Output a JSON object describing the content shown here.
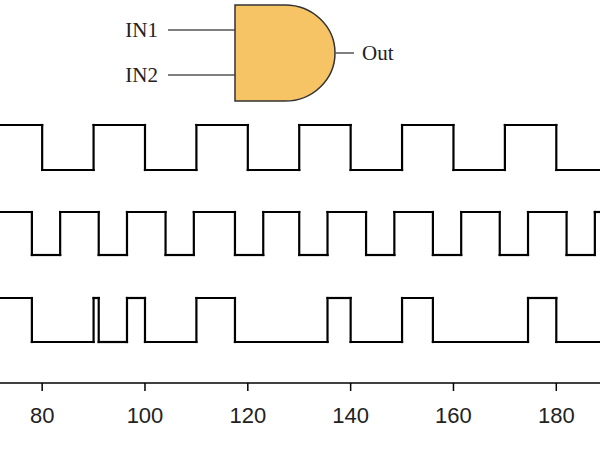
{
  "chart_data": {
    "type": "step",
    "tick_labels": "x",
    "xlim": [
      71.8,
      188.5
    ],
    "xticks": [
      80,
      100,
      120,
      140,
      160,
      180
    ],
    "ylim": [
      0,
      1
    ],
    "series": [
      {
        "name": "IN1",
        "x": [
          71.8,
          80,
          90,
          100,
          110,
          120,
          130,
          140,
          150,
          160,
          170,
          180
        ],
        "values": [
          1,
          0,
          1,
          0,
          1,
          0,
          1,
          0,
          1,
          0,
          1,
          0
        ]
      },
      {
        "name": "IN2",
        "x": [
          71.8,
          78,
          83.5,
          91,
          96.5,
          104,
          109.5,
          117.5,
          123,
          130,
          135.5,
          143,
          148.5,
          156,
          161.5,
          169,
          174.5,
          182,
          187.5
        ],
        "values": [
          1,
          0,
          1,
          0,
          1,
          0,
          1,
          0,
          1,
          0,
          1,
          0,
          1,
          0,
          1,
          0,
          1,
          0,
          1
        ]
      },
      {
        "name": "Out",
        "x": [
          71.8,
          78,
          90,
          91,
          96.5,
          100,
          110,
          117.5,
          135.5,
          140,
          150,
          156,
          174.5,
          180
        ],
        "values": [
          1,
          0,
          1,
          0,
          1,
          0,
          1,
          0,
          1,
          0,
          1,
          0,
          1,
          0
        ]
      }
    ]
  }
}
